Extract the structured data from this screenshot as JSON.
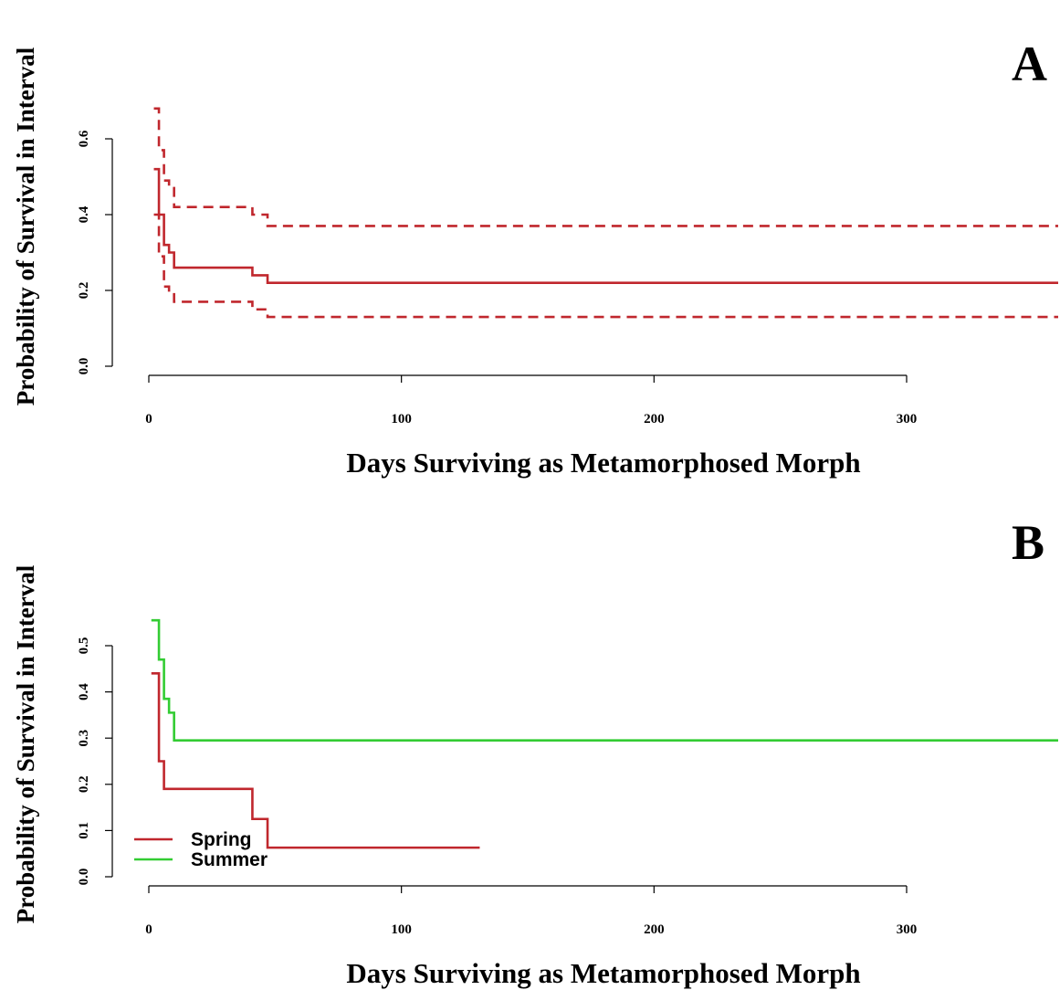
{
  "chart_data": [
    {
      "type": "line",
      "panel_label": "A",
      "xlabel": "Days Surviving as Metamorphosed Morph",
      "ylabel": "Probability of Survival in Interval",
      "xlim": [
        0,
        360
      ],
      "ylim": [
        0,
        0.7
      ],
      "x_ticks": [
        0,
        100,
        200,
        300
      ],
      "y_ticks": [
        0.0,
        0.2,
        0.4,
        0.6
      ],
      "x_tick_labels": [
        "0",
        "100",
        "200",
        "300"
      ],
      "y_tick_labels": [
        "0.0",
        "0.2",
        "0.4",
        "0.6"
      ],
      "grid": false,
      "legend": null,
      "series": [
        {
          "role": "estimate",
          "color": "#c0272d",
          "dash": "solid",
          "steps": [
            [
              2,
              0.52
            ],
            [
              4,
              0.4
            ],
            [
              6,
              0.32
            ],
            [
              8,
              0.3
            ],
            [
              10,
              0.26
            ],
            [
              41,
              0.24
            ],
            [
              47,
              0.22
            ],
            [
              360,
              0.22
            ]
          ]
        },
        {
          "role": "upper-ci",
          "color": "#c0272d",
          "dash": "dashed",
          "steps": [
            [
              2,
              0.68
            ],
            [
              4,
              0.57
            ],
            [
              6,
              0.49
            ],
            [
              8,
              0.47
            ],
            [
              10,
              0.42
            ],
            [
              41,
              0.4
            ],
            [
              47,
              0.37
            ],
            [
              360,
              0.37
            ]
          ]
        },
        {
          "role": "lower-ci",
          "color": "#c0272d",
          "dash": "dashed",
          "steps": [
            [
              2,
              0.4
            ],
            [
              4,
              0.29
            ],
            [
              6,
              0.21
            ],
            [
              8,
              0.19
            ],
            [
              10,
              0.17
            ],
            [
              41,
              0.15
            ],
            [
              47,
              0.13
            ],
            [
              360,
              0.13
            ]
          ]
        }
      ]
    },
    {
      "type": "line",
      "panel_label": "B",
      "xlabel": "Days Surviving as Metamorphosed Morph",
      "ylabel": "Probability of Survival in Interval",
      "xlim": [
        0,
        360
      ],
      "ylim": [
        0,
        0.55
      ],
      "x_ticks": [
        0,
        100,
        200,
        300
      ],
      "y_ticks": [
        0.0,
        0.1,
        0.2,
        0.3,
        0.4,
        0.5
      ],
      "x_tick_labels": [
        "0",
        "100",
        "200",
        "300"
      ],
      "y_tick_labels": [
        "0.0",
        "0.1",
        "0.2",
        "0.3",
        "0.4",
        "0.5"
      ],
      "grid": false,
      "legend": "bottom-left",
      "series": [
        {
          "name": "Spring",
          "color": "#c0272d",
          "dash": "solid",
          "steps": [
            [
              1,
              0.44
            ],
            [
              4,
              0.25
            ],
            [
              6,
              0.19
            ],
            [
              41,
              0.125
            ],
            [
              47,
              0.063
            ],
            [
              131,
              0.063
            ]
          ]
        },
        {
          "name": "Summer",
          "color": "#33cc33",
          "dash": "solid",
          "steps": [
            [
              1,
              0.555
            ],
            [
              4,
              0.47
            ],
            [
              6,
              0.385
            ],
            [
              8,
              0.355
            ],
            [
              10,
              0.295
            ],
            [
              360,
              0.295
            ]
          ]
        }
      ]
    }
  ]
}
